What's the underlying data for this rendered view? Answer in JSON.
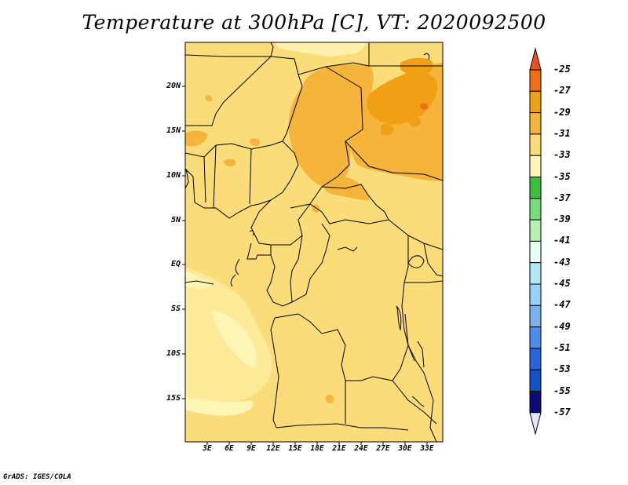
{
  "title": "Temperature at 300hPa [C], VT: 2020092500",
  "credit": "GrADS: IGES/COLA",
  "map": {
    "lat_labels": [
      "20N",
      "15N",
      "10N",
      "5N",
      "EQ",
      "5S",
      "10S",
      "15S"
    ],
    "lon_labels": [
      "3E",
      "6E",
      "9E",
      "12E",
      "15E",
      "18E",
      "21E",
      "24E",
      "27E",
      "30E",
      "33E"
    ]
  },
  "colorbar": {
    "labels": [
      "-25",
      "-27",
      "-29",
      "-31",
      "-33",
      "-35",
      "-37",
      "-39",
      "-41",
      "-43",
      "-45",
      "-47",
      "-49",
      "-51",
      "-53",
      "-55",
      "-57"
    ],
    "colors": {
      "above_-25": "#f0501e",
      "-27_-25": "#f06e14",
      "-29_-27": "#f0a014",
      "-31_-29": "#f5b43c",
      "-33_-31": "#fadc78",
      "-35_-33": "#fff5b4",
      "-37_-35": "#3cbe3c",
      "-39_-37": "#78dc78",
      "-41_-39": "#b4f0b4",
      "-43_-41": "#e6fff0",
      "-45_-43": "#b4e6fa",
      "-47_-45": "#96d2fa",
      "-49_-47": "#78b4f0",
      "-51_-49": "#508cf0",
      "-53_-51": "#2864dc",
      "-55_-53": "#1450c8",
      "-57_-55": "#1e3caa",
      "below_-57": "#0a0a78",
      "lowest_triangle": "#e6e6fa"
    }
  }
}
